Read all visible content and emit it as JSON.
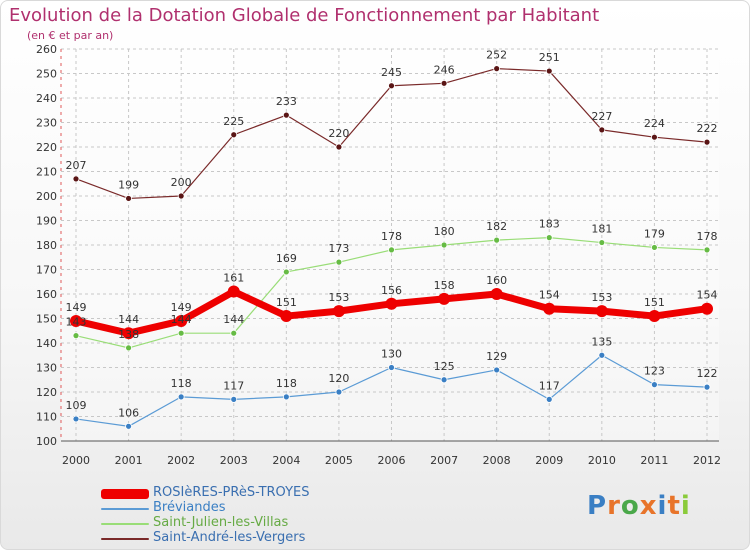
{
  "title": "Evolution de la Dotation Globale de Fonctionnement par Habitant",
  "subtitle": "(en € et par an)",
  "brand": "Proxiti",
  "chart_data": {
    "type": "line",
    "title": "Evolution de la Dotation Globale de Fonctionnement par Habitant",
    "subtitle": "(en € et par an)",
    "x": [
      "2000",
      "2001",
      "2002",
      "2003",
      "2004",
      "2005",
      "2006",
      "2007",
      "2008",
      "2009",
      "2010",
      "2011",
      "2012"
    ],
    "ylim": [
      100,
      260
    ],
    "yticks": [
      100,
      110,
      120,
      130,
      140,
      150,
      160,
      170,
      180,
      190,
      200,
      210,
      220,
      230,
      240,
      250,
      260
    ],
    "grid": true,
    "legend_position": "bottom-left",
    "series": [
      {
        "name": "ROSIèRES-PRèS-TROYES",
        "color": "#ee0000",
        "values": [
          149,
          144,
          149,
          161,
          151,
          153,
          156,
          158,
          160,
          154,
          153,
          151,
          154
        ]
      },
      {
        "name": "Bréviandes",
        "color": "#5b9bd5",
        "values": [
          109,
          106,
          118,
          117,
          118,
          120,
          130,
          125,
          129,
          117,
          135,
          123,
          122
        ]
      },
      {
        "name": "Saint-Julien-les-Villas",
        "color": "#99dd77",
        "values": [
          143,
          138,
          144,
          144,
          169,
          173,
          178,
          180,
          182,
          183,
          181,
          179,
          178
        ]
      },
      {
        "name": "Saint-André-les-Vergers",
        "color": "#7a2a2a",
        "values": [
          207,
          199,
          200,
          225,
          233,
          220,
          245,
          246,
          252,
          251,
          227,
          224,
          222
        ]
      }
    ]
  }
}
